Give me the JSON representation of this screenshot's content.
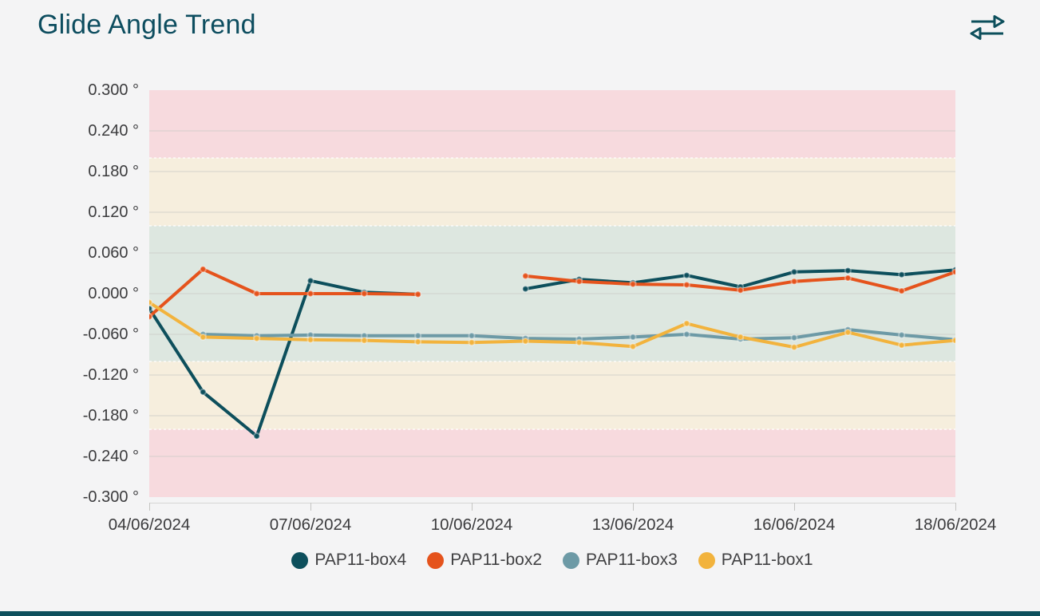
{
  "header": {
    "title": "Glide Angle Trend",
    "icon": "swap-horizontal-icon",
    "title_color": "#0d4d5f"
  },
  "chart_data": {
    "type": "line",
    "title": "Glide Angle Trend",
    "y_unit": "°",
    "ylim": [
      -0.3,
      0.3
    ],
    "y_tick_step": 0.06,
    "y_ticks": [
      {
        "value": 0.3,
        "label": "0.300 °"
      },
      {
        "value": 0.24,
        "label": "0.240 °"
      },
      {
        "value": 0.18,
        "label": "0.180 °"
      },
      {
        "value": 0.12,
        "label": "0.120 °"
      },
      {
        "value": 0.06,
        "label": "0.060 °"
      },
      {
        "value": 0.0,
        "label": "0.000 °"
      },
      {
        "value": -0.06,
        "label": "-0.060 °"
      },
      {
        "value": -0.12,
        "label": "-0.120 °"
      },
      {
        "value": -0.18,
        "label": "-0.180 °"
      },
      {
        "value": -0.24,
        "label": "-0.240 °"
      },
      {
        "value": -0.3,
        "label": "-0.300 °"
      }
    ],
    "n_points": 16,
    "x_ticks": [
      {
        "index": 0,
        "label": "04/06/2024"
      },
      {
        "index": 3,
        "label": "07/06/2024"
      },
      {
        "index": 6,
        "label": "10/06/2024"
      },
      {
        "index": 9,
        "label": "13/06/2024"
      },
      {
        "index": 12,
        "label": "16/06/2024"
      },
      {
        "index": 15,
        "label": "18/06/2024"
      }
    ],
    "bands": [
      {
        "from": 0.2,
        "to": 0.3,
        "color": "#f7dade",
        "meaning": "upper-red-zone"
      },
      {
        "from": 0.1,
        "to": 0.2,
        "color": "#f6eedd",
        "meaning": "upper-amber-zone"
      },
      {
        "from": -0.1,
        "to": 0.1,
        "color": "#dde7e0",
        "meaning": "green-zone"
      },
      {
        "from": -0.2,
        "to": -0.1,
        "color": "#f6eedd",
        "meaning": "lower-amber-zone"
      },
      {
        "from": -0.3,
        "to": -0.2,
        "color": "#f7dade",
        "meaning": "lower-red-zone"
      }
    ],
    "band_boundaries": [
      0.2,
      0.1,
      -0.1,
      -0.2
    ],
    "grid": true,
    "legend_position": "bottom",
    "series": [
      {
        "name": "PAP11-box4",
        "color": "#0d4f5c",
        "values": [
          -0.022,
          -0.145,
          -0.21,
          0.019,
          0.002,
          -0.001,
          null,
          0.007,
          0.021,
          0.016,
          0.027,
          0.01,
          0.032,
          0.034,
          0.028,
          0.035
        ]
      },
      {
        "name": "PAP11-box2",
        "color": "#e5531c",
        "values": [
          -0.034,
          0.036,
          0.0,
          0.0,
          0.0,
          -0.001,
          null,
          0.026,
          0.018,
          0.014,
          0.013,
          0.005,
          0.018,
          0.023,
          0.004,
          0.032
        ]
      },
      {
        "name": "PAP11-box3",
        "color": "#6d9aa6",
        "values": [
          null,
          -0.06,
          -0.062,
          -0.061,
          -0.062,
          -0.062,
          -0.062,
          -0.066,
          -0.067,
          -0.064,
          -0.06,
          -0.067,
          -0.065,
          -0.053,
          -0.061,
          -0.068
        ]
      },
      {
        "name": "PAP11-box1",
        "color": "#f2b33d",
        "values": [
          -0.013,
          -0.064,
          -0.066,
          -0.068,
          -0.069,
          -0.071,
          -0.072,
          -0.07,
          -0.072,
          -0.078,
          -0.044,
          -0.064,
          -0.079,
          -0.057,
          -0.076,
          -0.069
        ]
      }
    ]
  },
  "legend": {
    "items": [
      {
        "label": "PAP11-box4",
        "color": "#0d4f5c"
      },
      {
        "label": "PAP11-box2",
        "color": "#e5531c"
      },
      {
        "label": "PAP11-box3",
        "color": "#6d9aa6"
      },
      {
        "label": "PAP11-box1",
        "color": "#f2b33d"
      }
    ]
  }
}
